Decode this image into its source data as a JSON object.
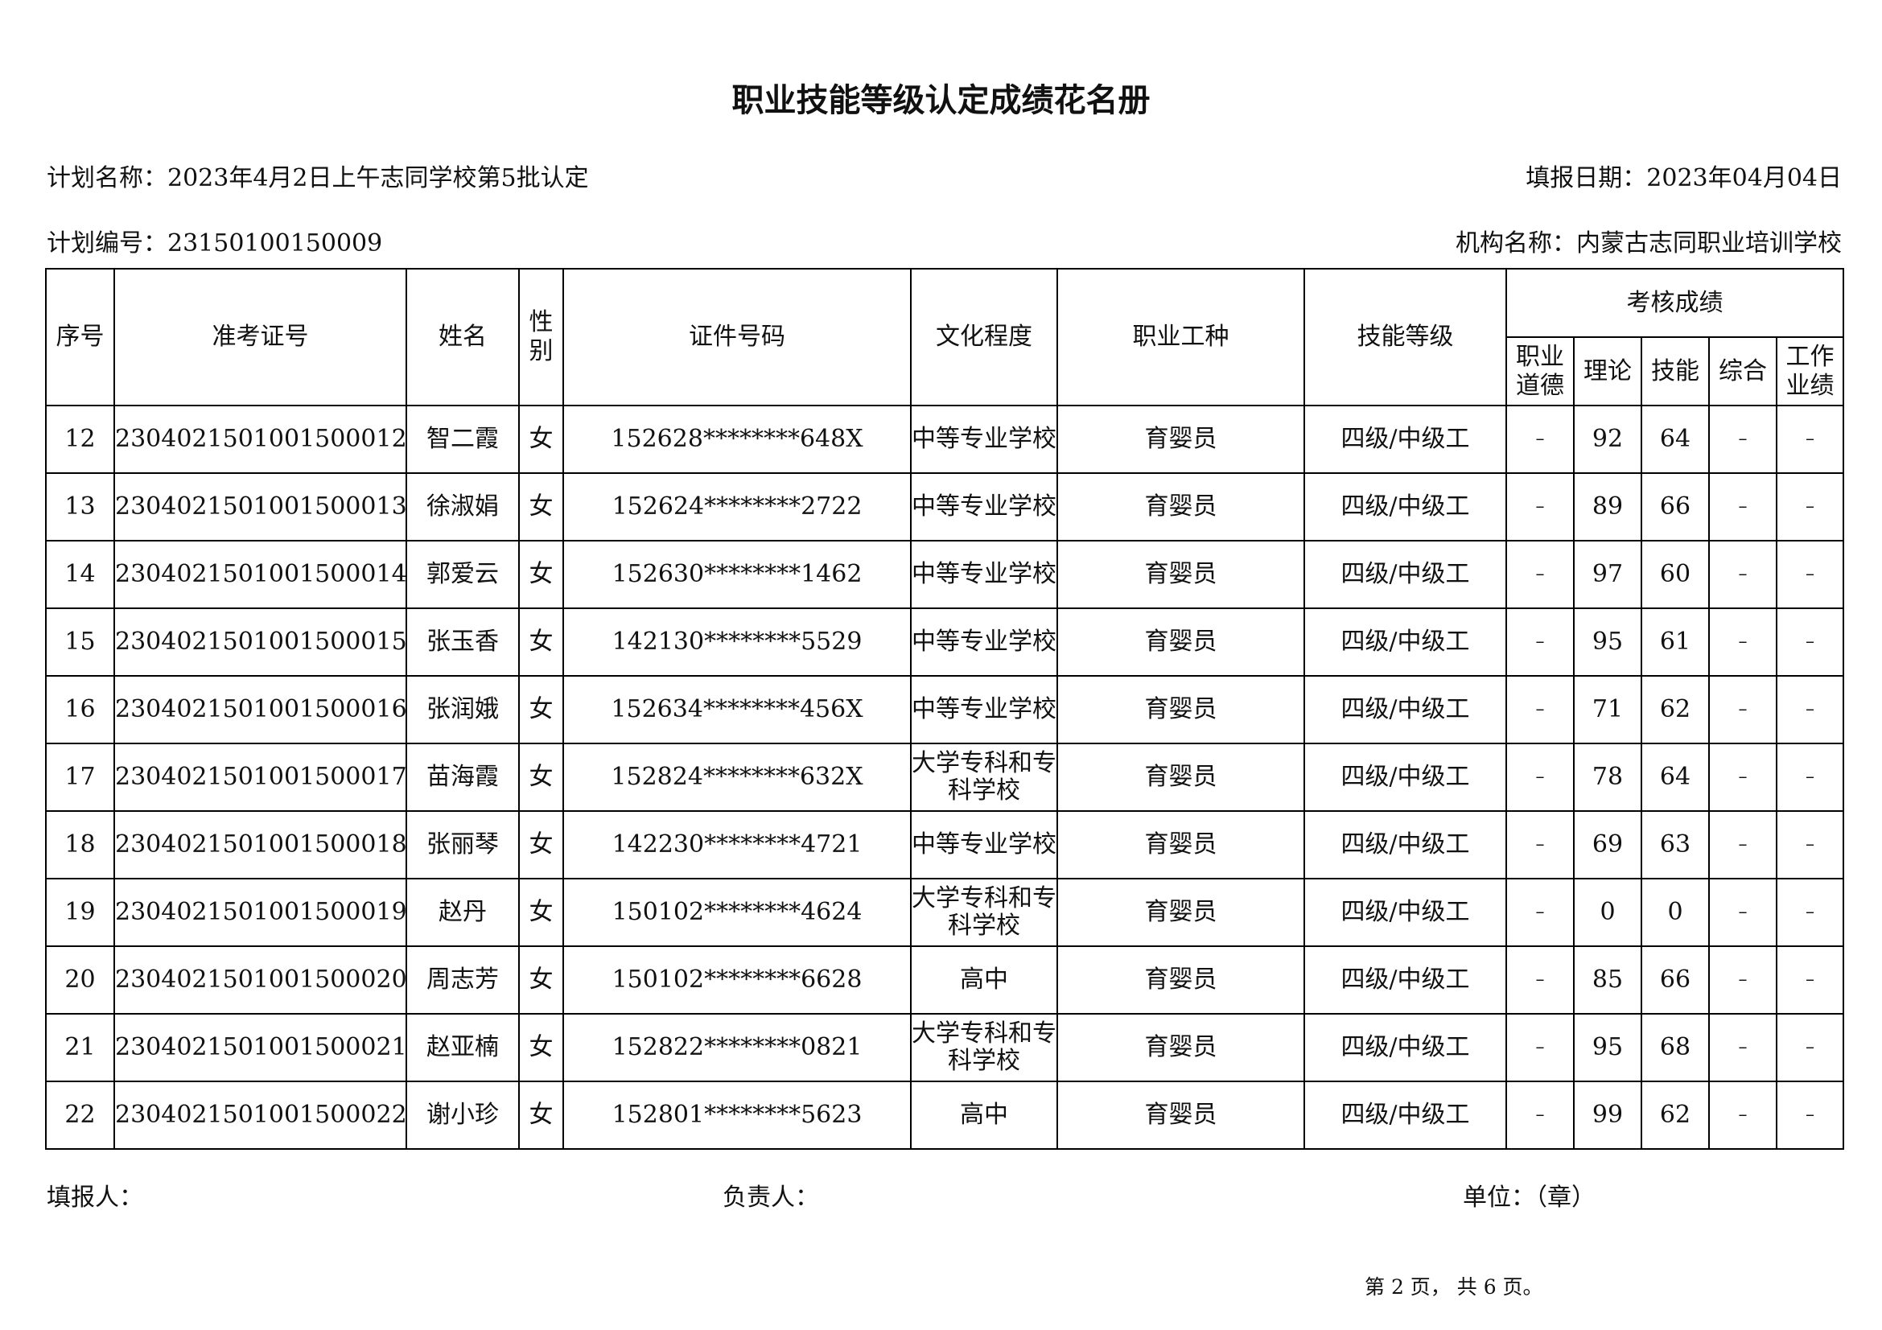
{
  "title": "职业技能等级认定成绩花名册",
  "plan_name": "计划名称：2023年4月2日上午志同学校第5批认定",
  "fill_date": "填报日期：2023年04月04日",
  "plan_no": "计划编号：23150100150009",
  "org_name": "机构名称：内蒙古志同职业培训学校",
  "headers": {
    "seq": "序号",
    "ticket": "准考证号",
    "name": "姓名",
    "gender": "性别",
    "id": "证件号码",
    "edu": "文化程度",
    "job": "职业工种",
    "level": "技能等级",
    "scores": "考核成绩",
    "ethics": "职业道德",
    "theory": "理论",
    "skill": "技能",
    "overall": "综合",
    "work": "工作业绩"
  },
  "rows": [
    [
      "12",
      "2304021501001500012",
      "智二霞",
      "女",
      "152628********648X",
      "中等专业学校",
      "育婴员",
      "四级/中级工",
      "–",
      "92",
      "64",
      "–",
      "–"
    ],
    [
      "13",
      "2304021501001500013",
      "徐淑娟",
      "女",
      "152624********2722",
      "中等专业学校",
      "育婴员",
      "四级/中级工",
      "–",
      "89",
      "66",
      "–",
      "–"
    ],
    [
      "14",
      "2304021501001500014",
      "郭爱云",
      "女",
      "152630********1462",
      "中等专业学校",
      "育婴员",
      "四级/中级工",
      "–",
      "97",
      "60",
      "–",
      "–"
    ],
    [
      "15",
      "2304021501001500015",
      "张玉香",
      "女",
      "142130********5529",
      "中等专业学校",
      "育婴员",
      "四级/中级工",
      "–",
      "95",
      "61",
      "–",
      "–"
    ],
    [
      "16",
      "2304021501001500016",
      "张润娥",
      "女",
      "152634********456X",
      "中等专业学校",
      "育婴员",
      "四级/中级工",
      "–",
      "71",
      "62",
      "–",
      "–"
    ],
    [
      "17",
      "2304021501001500017",
      "苗海霞",
      "女",
      "152824********632X",
      "大学专科和专科学校",
      "育婴员",
      "四级/中级工",
      "–",
      "78",
      "64",
      "–",
      "–"
    ],
    [
      "18",
      "2304021501001500018",
      "张丽琴",
      "女",
      "142230********4721",
      "中等专业学校",
      "育婴员",
      "四级/中级工",
      "–",
      "69",
      "63",
      "–",
      "–"
    ],
    [
      "19",
      "2304021501001500019",
      "赵丹",
      "女",
      "150102********4624",
      "大学专科和专科学校",
      "育婴员",
      "四级/中级工",
      "–",
      "0",
      "0",
      "–",
      "–"
    ],
    [
      "20",
      "2304021501001500020",
      "周志芳",
      "女",
      "150102********6628",
      "高中",
      "育婴员",
      "四级/中级工",
      "–",
      "85",
      "66",
      "–",
      "–"
    ],
    [
      "21",
      "2304021501001500021",
      "赵亚楠",
      "女",
      "152822********0821",
      "大学专科和专科学校",
      "育婴员",
      "四级/中级工",
      "–",
      "95",
      "68",
      "–",
      "–"
    ],
    [
      "22",
      "2304021501001500022",
      "谢小珍",
      "女",
      "152801********5623",
      "高中",
      "育婴员",
      "四级/中级工",
      "–",
      "99",
      "62",
      "–",
      "–"
    ]
  ],
  "footer": {
    "filler": "填报人：",
    "manager": "负责人：",
    "unit": "单位：（章）",
    "page": "第 2 页， 共 6 页。"
  }
}
